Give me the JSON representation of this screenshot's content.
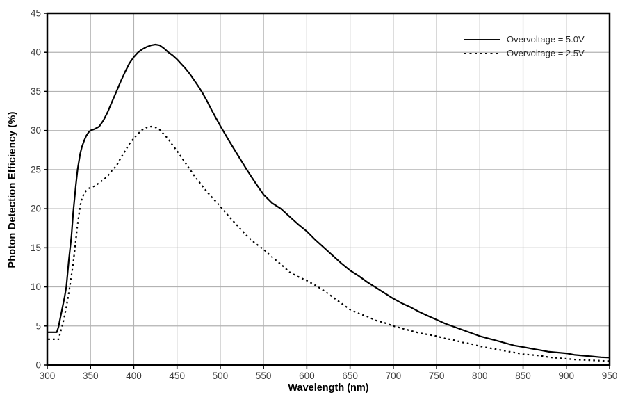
{
  "chart_data": {
    "type": "line",
    "title": "",
    "xlabel": "Wavelength (nm)",
    "ylabel": "Photon Detection Efficiency (%)",
    "xlim": [
      300,
      950
    ],
    "ylim": [
      0,
      45
    ],
    "xticks": [
      300,
      350,
      400,
      450,
      500,
      550,
      600,
      650,
      700,
      750,
      800,
      850,
      900,
      950
    ],
    "yticks": [
      0,
      5,
      10,
      15,
      20,
      25,
      30,
      35,
      40,
      45
    ],
    "grid": true,
    "legend_position": "top-right-inside",
    "line_color": "#000000",
    "grid_color": "#b3b3b3",
    "frame_color": "#000000",
    "tick_label_color": "#3c3c3c",
    "series": [
      {
        "name": "Overvoltage = 5.0V",
        "line_style": "solid",
        "color": "#000000",
        "points": [
          [
            300,
            4.2
          ],
          [
            311,
            4.2
          ],
          [
            313,
            4.9
          ],
          [
            315,
            6.0
          ],
          [
            318,
            7.6
          ],
          [
            320,
            8.7
          ],
          [
            322,
            10.0
          ],
          [
            325,
            13.5
          ],
          [
            328,
            16.5
          ],
          [
            330,
            19.5
          ],
          [
            333,
            23.0
          ],
          [
            335,
            25.0
          ],
          [
            338,
            27.0
          ],
          [
            340,
            27.9
          ],
          [
            343,
            28.8
          ],
          [
            345,
            29.3
          ],
          [
            348,
            29.8
          ],
          [
            350,
            30.0
          ],
          [
            355,
            30.2
          ],
          [
            360,
            30.5
          ],
          [
            365,
            31.3
          ],
          [
            370,
            32.4
          ],
          [
            375,
            33.7
          ],
          [
            380,
            35.0
          ],
          [
            385,
            36.3
          ],
          [
            390,
            37.5
          ],
          [
            395,
            38.6
          ],
          [
            400,
            39.4
          ],
          [
            405,
            40.0
          ],
          [
            410,
            40.4
          ],
          [
            415,
            40.7
          ],
          [
            420,
            40.9
          ],
          [
            425,
            41.0
          ],
          [
            430,
            40.9
          ],
          [
            435,
            40.5
          ],
          [
            440,
            40.0
          ],
          [
            445,
            39.6
          ],
          [
            450,
            39.1
          ],
          [
            455,
            38.5
          ],
          [
            460,
            37.9
          ],
          [
            465,
            37.2
          ],
          [
            470,
            36.4
          ],
          [
            475,
            35.6
          ],
          [
            480,
            34.7
          ],
          [
            485,
            33.7
          ],
          [
            490,
            32.6
          ],
          [
            495,
            31.6
          ],
          [
            500,
            30.6
          ],
          [
            510,
            28.7
          ],
          [
            520,
            26.9
          ],
          [
            530,
            25.1
          ],
          [
            540,
            23.4
          ],
          [
            550,
            21.8
          ],
          [
            560,
            20.7
          ],
          [
            570,
            20.0
          ],
          [
            580,
            19.0
          ],
          [
            590,
            18.0
          ],
          [
            600,
            17.1
          ],
          [
            610,
            16.0
          ],
          [
            620,
            15.0
          ],
          [
            630,
            14.0
          ],
          [
            640,
            13.0
          ],
          [
            650,
            12.1
          ],
          [
            660,
            11.4
          ],
          [
            670,
            10.6
          ],
          [
            680,
            9.9
          ],
          [
            690,
            9.2
          ],
          [
            700,
            8.5
          ],
          [
            710,
            7.9
          ],
          [
            720,
            7.4
          ],
          [
            730,
            6.8
          ],
          [
            740,
            6.3
          ],
          [
            750,
            5.8
          ],
          [
            760,
            5.3
          ],
          [
            770,
            4.9
          ],
          [
            780,
            4.5
          ],
          [
            790,
            4.1
          ],
          [
            800,
            3.7
          ],
          [
            810,
            3.4
          ],
          [
            820,
            3.1
          ],
          [
            830,
            2.8
          ],
          [
            840,
            2.5
          ],
          [
            850,
            2.3
          ],
          [
            860,
            2.1
          ],
          [
            870,
            1.9
          ],
          [
            880,
            1.7
          ],
          [
            890,
            1.6
          ],
          [
            900,
            1.5
          ],
          [
            910,
            1.3
          ],
          [
            920,
            1.2
          ],
          [
            930,
            1.1
          ],
          [
            940,
            1.0
          ],
          [
            950,
            0.95
          ]
        ]
      },
      {
        "name": "Overvoltage = 2.5V",
        "line_style": "dashed",
        "color": "#000000",
        "points": [
          [
            301,
            3.3
          ],
          [
            313,
            3.3
          ],
          [
            315,
            4.1
          ],
          [
            318,
            5.3
          ],
          [
            320,
            6.3
          ],
          [
            323,
            8.0
          ],
          [
            325,
            9.3
          ],
          [
            328,
            11.5
          ],
          [
            330,
            13.0
          ],
          [
            333,
            16.0
          ],
          [
            335,
            18.0
          ],
          [
            338,
            20.3
          ],
          [
            340,
            21.3
          ],
          [
            343,
            22.0
          ],
          [
            345,
            22.3
          ],
          [
            348,
            22.6
          ],
          [
            350,
            22.7
          ],
          [
            355,
            22.9
          ],
          [
            360,
            23.3
          ],
          [
            365,
            23.7
          ],
          [
            370,
            24.2
          ],
          [
            375,
            24.9
          ],
          [
            380,
            25.5
          ],
          [
            385,
            26.5
          ],
          [
            390,
            27.4
          ],
          [
            395,
            28.3
          ],
          [
            400,
            29.0
          ],
          [
            405,
            29.6
          ],
          [
            410,
            30.1
          ],
          [
            415,
            30.4
          ],
          [
            420,
            30.5
          ],
          [
            425,
            30.4
          ],
          [
            430,
            30.1
          ],
          [
            435,
            29.5
          ],
          [
            440,
            28.9
          ],
          [
            445,
            28.1
          ],
          [
            450,
            27.4
          ],
          [
            455,
            26.6
          ],
          [
            460,
            25.8
          ],
          [
            465,
            25.0
          ],
          [
            470,
            24.2
          ],
          [
            475,
            23.5
          ],
          [
            480,
            22.8
          ],
          [
            485,
            22.1
          ],
          [
            490,
            21.5
          ],
          [
            495,
            20.9
          ],
          [
            500,
            20.3
          ],
          [
            510,
            19.0
          ],
          [
            520,
            17.8
          ],
          [
            530,
            16.6
          ],
          [
            540,
            15.6
          ],
          [
            550,
            14.8
          ],
          [
            560,
            13.8
          ],
          [
            570,
            12.9
          ],
          [
            580,
            11.9
          ],
          [
            590,
            11.3
          ],
          [
            600,
            10.8
          ],
          [
            610,
            10.2
          ],
          [
            620,
            9.5
          ],
          [
            630,
            8.7
          ],
          [
            640,
            7.9
          ],
          [
            650,
            7.1
          ],
          [
            660,
            6.6
          ],
          [
            670,
            6.2
          ],
          [
            680,
            5.7
          ],
          [
            690,
            5.4
          ],
          [
            700,
            5.0
          ],
          [
            710,
            4.7
          ],
          [
            720,
            4.4
          ],
          [
            730,
            4.1
          ],
          [
            740,
            3.9
          ],
          [
            750,
            3.7
          ],
          [
            760,
            3.4
          ],
          [
            770,
            3.2
          ],
          [
            780,
            2.9
          ],
          [
            790,
            2.7
          ],
          [
            800,
            2.4
          ],
          [
            810,
            2.2
          ],
          [
            820,
            2.0
          ],
          [
            830,
            1.8
          ],
          [
            840,
            1.6
          ],
          [
            850,
            1.4
          ],
          [
            860,
            1.3
          ],
          [
            870,
            1.2
          ],
          [
            880,
            1.0
          ],
          [
            890,
            0.9
          ],
          [
            900,
            0.8
          ],
          [
            910,
            0.7
          ],
          [
            920,
            0.65
          ],
          [
            930,
            0.6
          ],
          [
            940,
            0.55
          ],
          [
            950,
            0.5
          ]
        ]
      }
    ]
  }
}
